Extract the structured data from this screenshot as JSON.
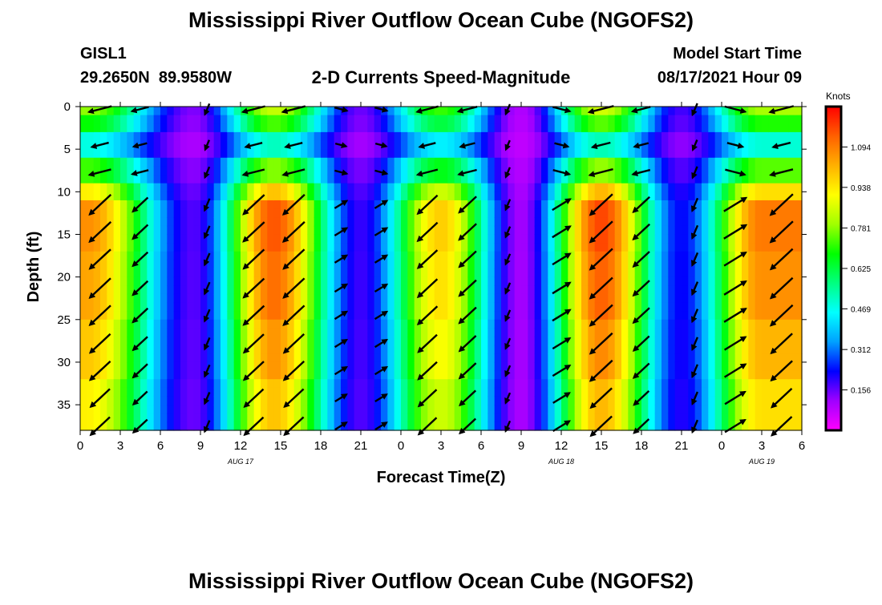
{
  "header": {
    "title": "Mississippi River Outflow Ocean Cube (NGOFS2)",
    "station_id": "GISL1",
    "station_coords": "29.2650N  89.9580W",
    "subtitle": "2-D Currents Speed-Magnitude",
    "model_start_label": "Model Start Time",
    "model_start_value": "08/17/2021 Hour 09"
  },
  "footer": {
    "title": "Mississippi River Outflow Ocean Cube (NGOFS2)"
  },
  "chart_data": {
    "type": "heatmap",
    "title": "2-D Currents Speed-Magnitude",
    "xlabel": "Forecast Time(Z)",
    "ylabel": "Depth (ft)",
    "x_hours_range": [
      0,
      54
    ],
    "ylim": [
      0,
      38
    ],
    "y_inverted": true,
    "x_ticks": [
      "0",
      "3",
      "6",
      "9",
      "12",
      "15",
      "18",
      "21",
      "0",
      "3",
      "6",
      "9",
      "12",
      "15",
      "18",
      "21",
      "0",
      "3",
      "6"
    ],
    "y_ticks": [
      0,
      5,
      10,
      15,
      20,
      25,
      30,
      35
    ],
    "date_labels": [
      {
        "label": "AUG 17",
        "hour": 12
      },
      {
        "label": "AUG 18",
        "hour": 36
      },
      {
        "label": "AUG 19",
        "hour": 51
      }
    ],
    "colorbar": {
      "unit": "Knots",
      "range": [
        0,
        1.25
      ],
      "ticks": [
        "1.094",
        "0.938",
        "0.781",
        "0.625",
        "0.469",
        "0.312",
        "0.156"
      ],
      "tick_values": [
        1.094,
        0.938,
        0.781,
        0.625,
        0.469,
        0.312,
        0.156
      ],
      "colors": [
        "#ff00ff",
        "#a000ff",
        "#0000ff",
        "#00a0ff",
        "#00ffff",
        "#00ff80",
        "#00ff00",
        "#a0ff00",
        "#ffff00",
        "#ffb000",
        "#ff6000",
        "#ff0000"
      ]
    },
    "speed_peaks": [
      {
        "hour": 0.5,
        "peak": 1.02
      },
      {
        "hour": 8.5,
        "peak": 0.12
      },
      {
        "hour": 14.5,
        "peak": 1.1
      },
      {
        "hour": 21,
        "peak": 0.14
      },
      {
        "hour": 27,
        "peak": 0.93
      },
      {
        "hour": 33,
        "peak": 0.06
      },
      {
        "hour": 39,
        "peak": 1.12
      },
      {
        "hour": 45,
        "peak": 0.18
      },
      {
        "hour": 51,
        "peak": 1.05
      }
    ],
    "arrow_hours": [
      1.5,
      4.5,
      9.5,
      13,
      16,
      19.5,
      22.5,
      26,
      29,
      32,
      36,
      39,
      42,
      46,
      49,
      52.5
    ],
    "arrow_depths": [
      0.3,
      4.5,
      7.7,
      11.5,
      14.7,
      17.9,
      21.3,
      24.5,
      27.8,
      31.0,
      34.2,
      37.5
    ]
  }
}
